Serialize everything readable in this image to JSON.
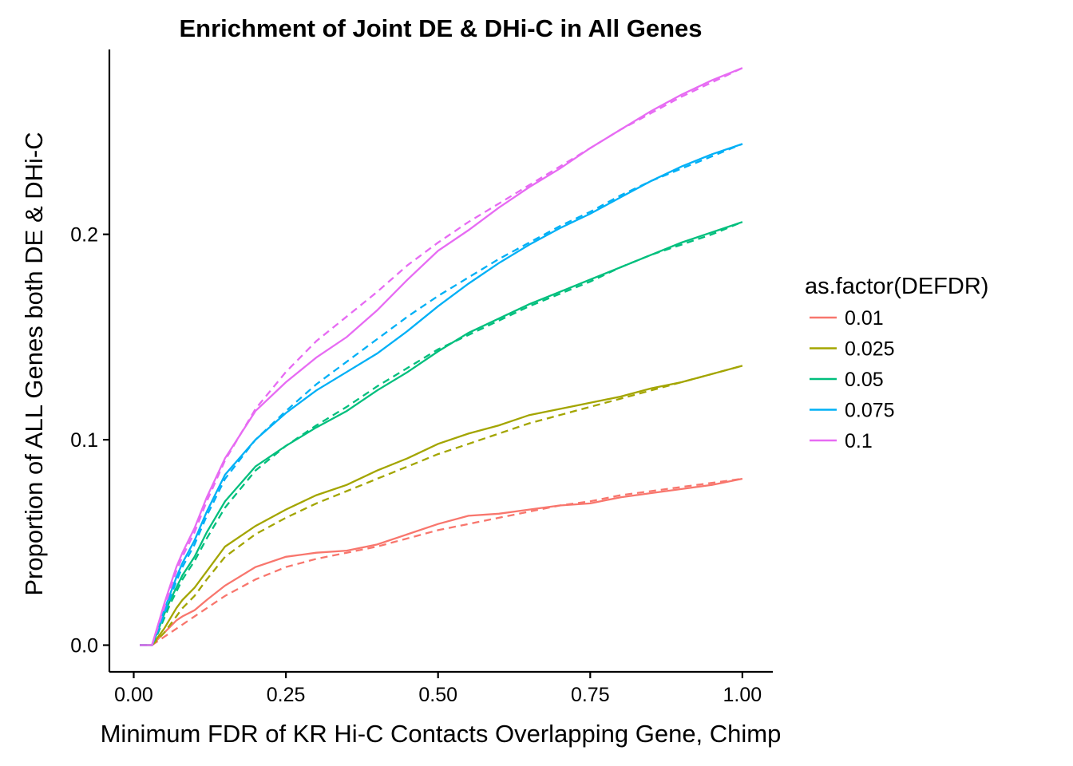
{
  "chart_data": {
    "type": "line",
    "title": "Enrichment of Joint DE & DHi-C in All Genes",
    "xlabel": "Minimum FDR of KR Hi-C Contacts Overlapping Gene, Chimp",
    "ylabel": "Proportion of ALL Genes both DE & DHi-C",
    "xlim": [
      -0.04,
      1.05
    ],
    "ylim": [
      -0.013,
      0.29
    ],
    "x_ticks": [
      {
        "value": 0.0,
        "label": "0.00"
      },
      {
        "value": 0.25,
        "label": "0.25"
      },
      {
        "value": 0.5,
        "label": "0.50"
      },
      {
        "value": 0.75,
        "label": "0.75"
      },
      {
        "value": 1.0,
        "label": "1.00"
      }
    ],
    "y_ticks": [
      {
        "value": 0.0,
        "label": "0.0"
      },
      {
        "value": 0.1,
        "label": "0.1"
      },
      {
        "value": 0.2,
        "label": "0.2"
      }
    ],
    "legend": {
      "title": "as.factor(DEFDR)",
      "position": "right"
    },
    "grid": false,
    "line_styles": [
      "solid",
      "dashed"
    ],
    "x": [
      0.01,
      0.02,
      0.03,
      0.04,
      0.05,
      0.06,
      0.07,
      0.08,
      0.1,
      0.12,
      0.15,
      0.2,
      0.25,
      0.3,
      0.35,
      0.4,
      0.45,
      0.5,
      0.55,
      0.6,
      0.65,
      0.7,
      0.75,
      0.8,
      0.85,
      0.9,
      0.95,
      1.0
    ],
    "series": [
      {
        "name": "0.01",
        "color": "#F8766D",
        "values": [
          0.0,
          0.0,
          0.0,
          0.003,
          0.006,
          0.009,
          0.012,
          0.014,
          0.017,
          0.022,
          0.029,
          0.038,
          0.043,
          0.045,
          0.046,
          0.049,
          0.054,
          0.059,
          0.063,
          0.064,
          0.066,
          0.068,
          0.069,
          0.072,
          0.074,
          0.076,
          0.078,
          0.081
        ],
        "values_dashed": [
          0.0,
          0.0,
          0.0,
          0.002,
          0.004,
          0.006,
          0.008,
          0.01,
          0.014,
          0.018,
          0.024,
          0.032,
          0.038,
          0.042,
          0.045,
          0.048,
          0.052,
          0.056,
          0.059,
          0.062,
          0.065,
          0.068,
          0.07,
          0.073,
          0.075,
          0.077,
          0.079,
          0.081
        ]
      },
      {
        "name": "0.025",
        "color": "#A3A500",
        "values": [
          0.0,
          0.0,
          0.0,
          0.004,
          0.008,
          0.013,
          0.018,
          0.022,
          0.028,
          0.036,
          0.048,
          0.058,
          0.066,
          0.073,
          0.078,
          0.085,
          0.091,
          0.098,
          0.103,
          0.107,
          0.112,
          0.115,
          0.118,
          0.121,
          0.125,
          0.128,
          0.132,
          0.136
        ],
        "values_dashed": [
          0.0,
          0.0,
          0.0,
          0.003,
          0.006,
          0.01,
          0.014,
          0.018,
          0.024,
          0.032,
          0.043,
          0.054,
          0.062,
          0.069,
          0.075,
          0.081,
          0.087,
          0.093,
          0.098,
          0.103,
          0.108,
          0.112,
          0.116,
          0.12,
          0.124,
          0.128,
          0.132,
          0.136
        ]
      },
      {
        "name": "0.05",
        "color": "#00BF7D",
        "values": [
          0.0,
          0.0,
          0.0,
          0.007,
          0.015,
          0.022,
          0.028,
          0.034,
          0.043,
          0.055,
          0.07,
          0.087,
          0.097,
          0.106,
          0.114,
          0.124,
          0.133,
          0.143,
          0.152,
          0.159,
          0.166,
          0.172,
          0.178,
          0.184,
          0.19,
          0.196,
          0.201,
          0.206
        ],
        "values_dashed": [
          0.0,
          0.0,
          0.0,
          0.006,
          0.013,
          0.02,
          0.026,
          0.032,
          0.041,
          0.052,
          0.067,
          0.085,
          0.097,
          0.107,
          0.116,
          0.126,
          0.135,
          0.144,
          0.151,
          0.158,
          0.165,
          0.171,
          0.177,
          0.184,
          0.19,
          0.195,
          0.2,
          0.206
        ]
      },
      {
        "name": "0.075",
        "color": "#00B0F6",
        "values": [
          0.0,
          0.0,
          0.0,
          0.008,
          0.017,
          0.025,
          0.033,
          0.04,
          0.051,
          0.065,
          0.083,
          0.1,
          0.113,
          0.124,
          0.133,
          0.142,
          0.153,
          0.165,
          0.176,
          0.186,
          0.195,
          0.203,
          0.21,
          0.218,
          0.226,
          0.233,
          0.239,
          0.244
        ],
        "values_dashed": [
          0.0,
          0.0,
          0.0,
          0.007,
          0.015,
          0.023,
          0.031,
          0.038,
          0.049,
          0.063,
          0.081,
          0.1,
          0.114,
          0.127,
          0.138,
          0.149,
          0.16,
          0.17,
          0.179,
          0.188,
          0.196,
          0.204,
          0.211,
          0.219,
          0.226,
          0.232,
          0.238,
          0.244
        ]
      },
      {
        "name": "0.1",
        "color": "#E76BF3",
        "values": [
          0.0,
          0.0,
          0.0,
          0.01,
          0.02,
          0.029,
          0.038,
          0.045,
          0.057,
          0.072,
          0.091,
          0.114,
          0.128,
          0.14,
          0.15,
          0.163,
          0.178,
          0.192,
          0.202,
          0.213,
          0.223,
          0.232,
          0.242,
          0.251,
          0.26,
          0.268,
          0.275,
          0.281
        ],
        "values_dashed": [
          0.0,
          0.0,
          0.0,
          0.009,
          0.018,
          0.027,
          0.036,
          0.043,
          0.055,
          0.07,
          0.09,
          0.115,
          0.133,
          0.148,
          0.16,
          0.172,
          0.185,
          0.196,
          0.206,
          0.215,
          0.224,
          0.233,
          0.242,
          0.251,
          0.259,
          0.267,
          0.274,
          0.281
        ]
      }
    ]
  }
}
